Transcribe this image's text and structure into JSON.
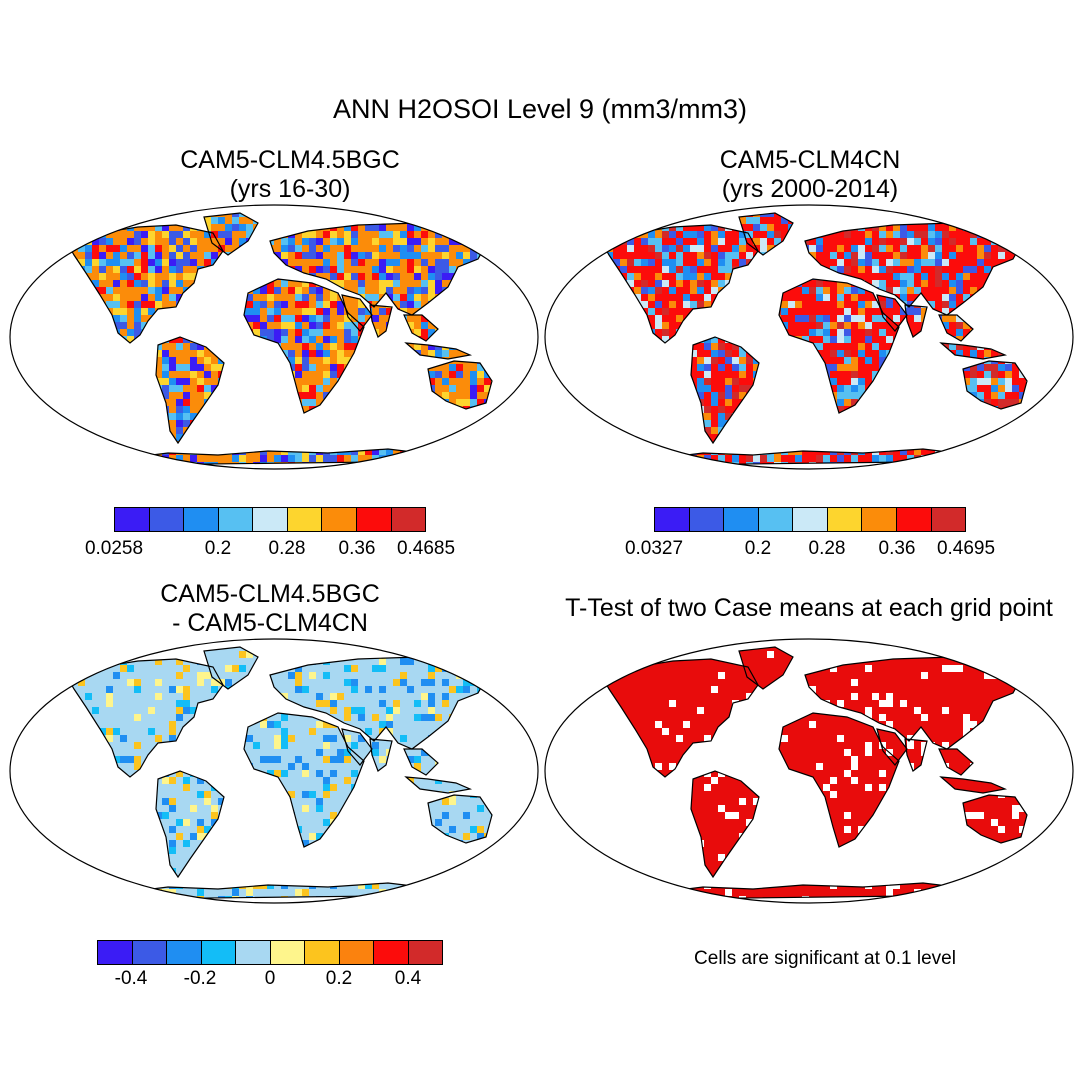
{
  "title": "ANN H2OSOI Level 9 (mm3/mm3)",
  "panels": [
    {
      "id": "p1",
      "title_line1": "CAM5-CLM4.5BGC",
      "title_line2": "(yrs 16-30)"
    },
    {
      "id": "p2",
      "title_line1": "CAM5-CLM4CN",
      "title_line2": "(yrs 2000-2014)"
    },
    {
      "id": "p3",
      "title_line1": "CAM5-CLM4.5BGC",
      "title_line2": "- CAM5-CLM4CN"
    },
    {
      "id": "p4",
      "title_line1": "T-Test of two Case means at each grid point"
    }
  ],
  "colorbars": {
    "cb1": {
      "colors": [
        "#3b1cf5",
        "#3c5ae6",
        "#1f8ef2",
        "#57c0f2",
        "#cbe9f7",
        "#fdd52e",
        "#fb8c0a",
        "#fc0c0b",
        "#d22a2a"
      ],
      "labels": [
        "0.0258",
        "0.2",
        "0.28",
        "0.36",
        "0.4685"
      ]
    },
    "cb2": {
      "colors": [
        "#3b1cf5",
        "#3c5ae6",
        "#1f8ef2",
        "#57c0f2",
        "#cbe9f7",
        "#fdd52e",
        "#fb8c0a",
        "#fc0c0b",
        "#d22a2a"
      ],
      "labels": [
        "0.0327",
        "0.2",
        "0.28",
        "0.36",
        "0.4695"
      ]
    },
    "cb3": {
      "colors": [
        "#3b1cf5",
        "#3c5ae6",
        "#1f8ef2",
        "#13bdf7",
        "#a8d8f2",
        "#fef58c",
        "#fcc41e",
        "#fb820e",
        "#fc0c0b",
        "#d22a2a"
      ],
      "labels": [
        "-0.4",
        "-0.2",
        "0",
        "0.2",
        "0.4"
      ]
    }
  },
  "note": "Cells are significant at 0.1 level"
}
